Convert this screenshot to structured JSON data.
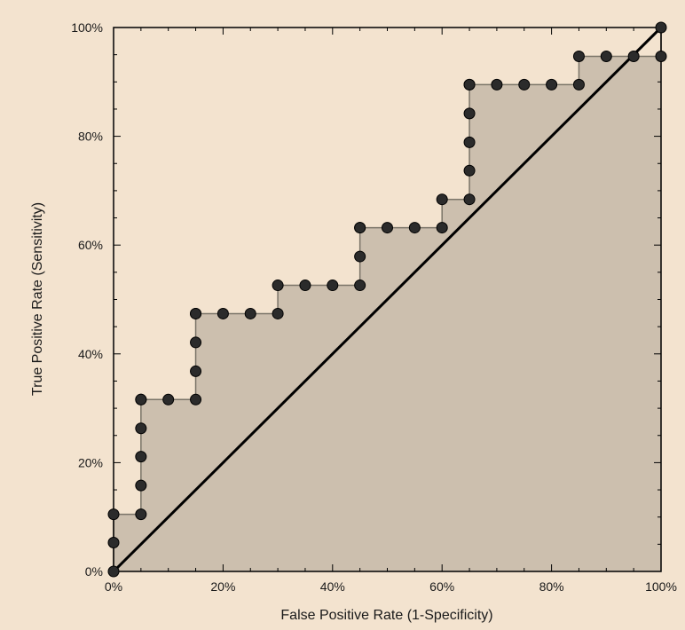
{
  "chart_data": {
    "type": "line",
    "subtype": "roc-curve-with-filled-area",
    "xlabel": "False Positive Rate (1-Specificity)",
    "ylabel": "True Positive Rate (Sensitivity)",
    "xlim": [
      0,
      100
    ],
    "ylim": [
      0,
      100
    ],
    "x_ticks": [
      "0%",
      "20%",
      "40%",
      "60%",
      "80%",
      "100%"
    ],
    "y_ticks": [
      "0%",
      "20%",
      "40%",
      "60%",
      "80%",
      "100%"
    ],
    "grid": false,
    "legend": "none",
    "series": [
      {
        "kind": "roc",
        "x": [
          0,
          0,
          0,
          5,
          5,
          5,
          5,
          5,
          5,
          10,
          15,
          15,
          15,
          15,
          15,
          20,
          25,
          30,
          30,
          35,
          40,
          45,
          45,
          45,
          45,
          50,
          55,
          60,
          60,
          65,
          65,
          65,
          65,
          65,
          65,
          70,
          75,
          80,
          85,
          85,
          90,
          95,
          100,
          100
        ],
        "y": [
          0,
          5.3,
          10.5,
          10.5,
          15.8,
          21.1,
          26.3,
          31.6,
          31.6,
          31.6,
          31.6,
          36.8,
          42.1,
          47.4,
          47.4,
          47.4,
          47.4,
          47.4,
          52.6,
          52.6,
          52.6,
          52.6,
          57.9,
          63.2,
          63.2,
          63.2,
          63.2,
          63.2,
          68.4,
          68.4,
          73.7,
          78.9,
          84.2,
          89.5,
          89.5,
          89.5,
          89.5,
          89.5,
          89.5,
          94.7,
          94.7,
          94.7,
          94.7,
          100
        ]
      },
      {
        "kind": "reference",
        "x": [
          0,
          100
        ],
        "y": [
          0,
          100
        ]
      }
    ],
    "colors": {
      "background": "#f3e3cf",
      "area_fill": "#ccbfae",
      "step_line": "#7a7468",
      "marker": "#2b2b2b",
      "diagonal": "#000000"
    }
  }
}
